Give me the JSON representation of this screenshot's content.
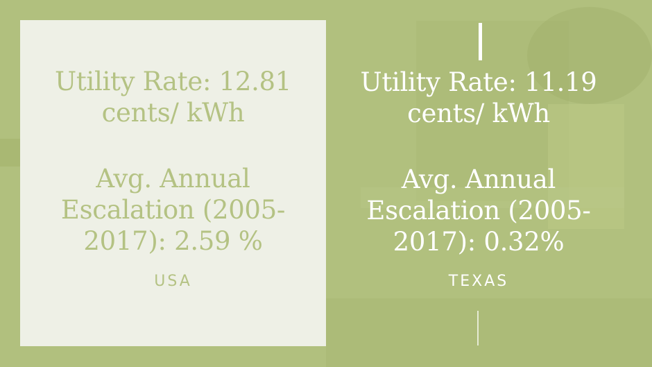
{
  "usa": {
    "rate_line1": "Utility Rate: 12.81",
    "rate_line2": "cents/ kWh",
    "esc_line1": "Avg. Annual",
    "esc_line2": "Escalation (2005-",
    "esc_line3": "2017): 2.59 %",
    "label": "USA"
  },
  "texas": {
    "rate_line1": "Utility Rate: 11.19",
    "rate_line2": "cents/ kWh",
    "esc_line1": "Avg. Annual",
    "esc_line2": "Escalation (2005-",
    "esc_line3": "2017): 0.32%",
    "label": "TEXAS"
  },
  "colors": {
    "background": "#b1c07e",
    "panel": "#eef0e6",
    "accent_text": "#b4c283",
    "light_text": "#ffffff"
  }
}
